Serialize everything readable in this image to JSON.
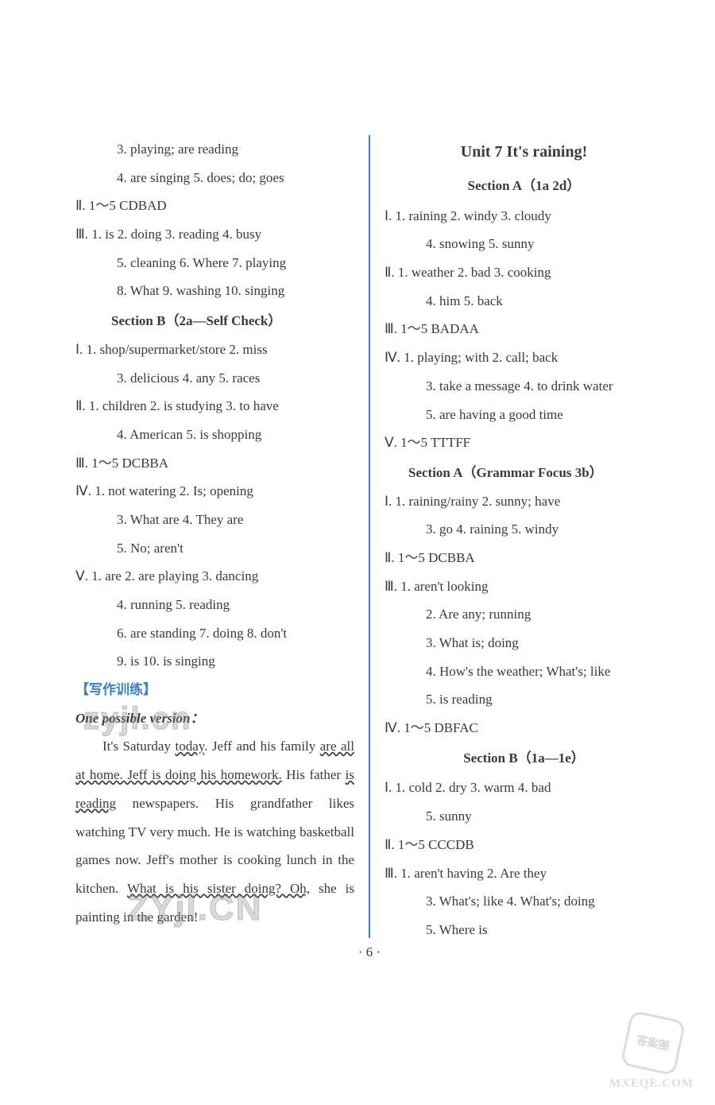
{
  "left": {
    "lines": [
      {
        "cls": "indent-2",
        "text": "3. playing; are reading"
      },
      {
        "cls": "indent-2",
        "text": "4. are singing   5. does; do; goes"
      },
      {
        "cls": "",
        "text": "Ⅱ. 1～5   CDBAD"
      },
      {
        "cls": "",
        "text": "Ⅲ. 1. is   2. doing   3. reading   4. busy"
      },
      {
        "cls": "indent-2",
        "text": "5. cleaning   6. Where   7. playing"
      },
      {
        "cls": "indent-2",
        "text": "8. What   9. washing   10. singing"
      }
    ],
    "section_b_header": "Section B（2a—Self Check）",
    "lines2": [
      {
        "cls": "",
        "text": "Ⅰ. 1. shop/supermarket/store   2. miss"
      },
      {
        "cls": "indent-2",
        "text": "3. delicious   4. any   5. races"
      },
      {
        "cls": "",
        "text": "Ⅱ. 1. children   2. is studying   3. to have"
      },
      {
        "cls": "indent-2",
        "text": "4. American   5. is shopping"
      },
      {
        "cls": "",
        "text": "Ⅲ. 1～5   DCBBA"
      },
      {
        "cls": "",
        "text": "Ⅳ. 1. not watering   2. Is; opening"
      },
      {
        "cls": "indent-2",
        "text": "3. What are   4. They are"
      },
      {
        "cls": "indent-2",
        "text": "5. No; aren't"
      },
      {
        "cls": "",
        "text": "Ⅴ. 1. are   2. are playing   3. dancing"
      },
      {
        "cls": "indent-2",
        "text": "4. running   5. reading"
      },
      {
        "cls": "indent-2",
        "text": "6. are standing   7. doing   8. don't"
      },
      {
        "cls": "indent-2",
        "text": "9. is   10. is singing"
      }
    ],
    "writing_label": "【写作训练】",
    "version_label": "One possible version：",
    "essay_parts": [
      {
        "wavy": false,
        "text": "It's Saturday "
      },
      {
        "wavy": true,
        "text": "today"
      },
      {
        "wavy": false,
        "text": ". Jeff and his family "
      },
      {
        "wavy": true,
        "text": "are all at home. Jeff is doing his homework."
      },
      {
        "wavy": false,
        "text": " His father "
      },
      {
        "wavy": true,
        "text": "is reading"
      },
      {
        "wavy": false,
        "text": " newspapers. His grandfather likes watching TV very much. He is watching basketball games now. Jeff's mother is cooking lunch in the kitchen. "
      },
      {
        "wavy": true,
        "text": "What is his sister doing? Oh,"
      },
      {
        "wavy": false,
        "text": " she is painting in the garden!"
      }
    ]
  },
  "right": {
    "unit_header": "Unit 7   It's raining!",
    "section_a1_header": "Section A（1a   2d）",
    "lines_a1": [
      {
        "cls": "",
        "text": "Ⅰ. 1. raining   2. windy   3. cloudy"
      },
      {
        "cls": "indent-2",
        "text": "4. snowing   5. sunny"
      },
      {
        "cls": "",
        "text": "Ⅱ. 1. weather   2. bad   3. cooking"
      },
      {
        "cls": "indent-2",
        "text": "4. him   5. back"
      },
      {
        "cls": "",
        "text": "Ⅲ. 1～5   BADAA"
      },
      {
        "cls": "",
        "text": "Ⅳ. 1. playing; with   2. call; back"
      },
      {
        "cls": "indent-2",
        "text": "3. take a message   4. to drink water"
      },
      {
        "cls": "indent-2",
        "text": "5. are having a good time"
      },
      {
        "cls": "",
        "text": "Ⅴ. 1～5   TTTFF"
      }
    ],
    "section_a2_header": "Section A（Grammar Focus   3b）",
    "lines_a2": [
      {
        "cls": "",
        "text": "Ⅰ. 1. raining/rainy   2. sunny; have"
      },
      {
        "cls": "indent-2",
        "text": "3. go   4. raining   5. windy"
      },
      {
        "cls": "",
        "text": "Ⅱ. 1～5   DCBBA"
      },
      {
        "cls": "",
        "text": "Ⅲ. 1. aren't looking"
      },
      {
        "cls": "indent-2",
        "text": "2. Are any; running"
      },
      {
        "cls": "indent-2",
        "text": "3. What is; doing"
      },
      {
        "cls": "indent-2",
        "text": "4. How's the weather; What's; like"
      },
      {
        "cls": "indent-2",
        "text": "5. is reading"
      },
      {
        "cls": "",
        "text": "Ⅳ. 1～5   DBFAC"
      }
    ],
    "section_b1_header": "Section B（1a—1e）",
    "lines_b1": [
      {
        "cls": "",
        "text": "Ⅰ. 1. cold   2. dry   3. warm   4. bad"
      },
      {
        "cls": "indent-2",
        "text": "5. sunny"
      },
      {
        "cls": "",
        "text": "Ⅱ. 1～5   CCCDB"
      },
      {
        "cls": "",
        "text": "Ⅲ. 1. aren't having   2. Are they"
      },
      {
        "cls": "indent-2",
        "text": "3. What's; like   4. What's; doing"
      },
      {
        "cls": "indent-2",
        "text": "5. Where is"
      }
    ]
  },
  "page_num": "· 6 ·",
  "watermarks": {
    "wm1": "zyjl.cn",
    "wm2": "ZYjl.CN",
    "badge_text": "答案圈",
    "domain": "MXEQE.COM"
  },
  "colors": {
    "text": "#3a3a3a",
    "accent": "#3b7fc6",
    "background": "#ffffff"
  },
  "fonts": {
    "body": "Times New Roman, serif",
    "body_size_pt": 13
  }
}
